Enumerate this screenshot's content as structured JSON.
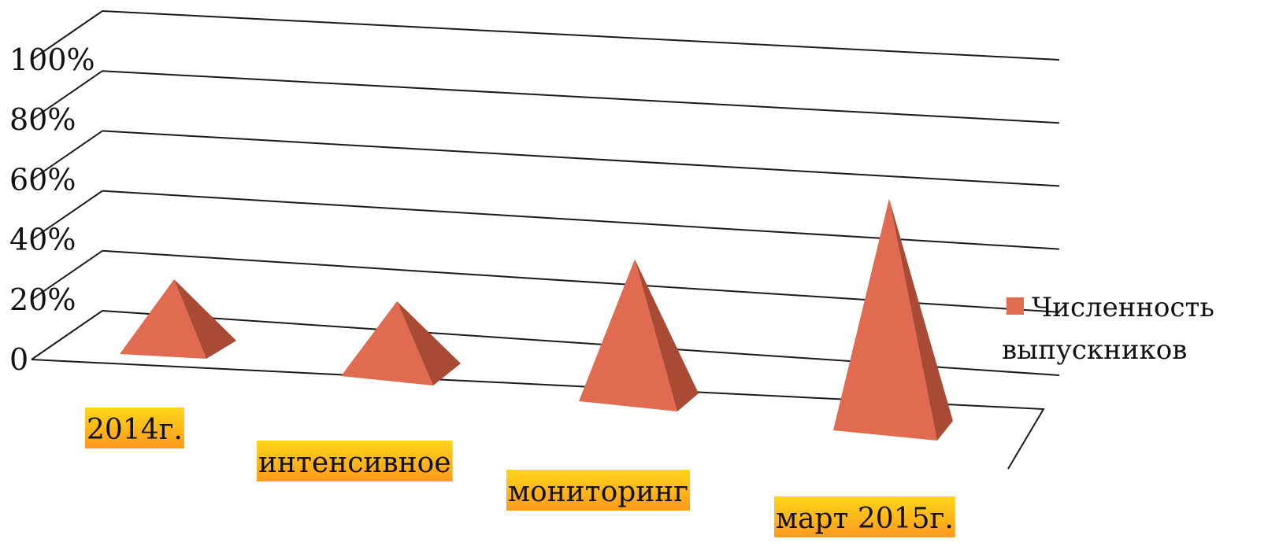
{
  "chart_data": {
    "type": "bar",
    "shape": "pyramid-3d",
    "categories": [
      "2014г.",
      "интенсивное",
      "мониторинг",
      "март 2015г."
    ],
    "series": [
      {
        "name": "Численность выпускников",
        "values": [
          20,
          20,
          38,
          62
        ]
      }
    ],
    "y_ticks": [
      "0",
      "20%",
      "40%",
      "60%",
      "80%",
      "100%"
    ],
    "ylim": [
      0,
      100
    ],
    "grid": true,
    "legend_position": "right",
    "legend_lines": [
      "Численность",
      "выпускников"
    ],
    "colors": {
      "pyramid_front": "#E06B50",
      "pyramid_side": "#A94A34",
      "legend_marker": "#E06B50",
      "category_label_top": "#FFD61A",
      "category_label_bottom": "#FF9A1C",
      "grid": "#1a1a1a"
    }
  }
}
